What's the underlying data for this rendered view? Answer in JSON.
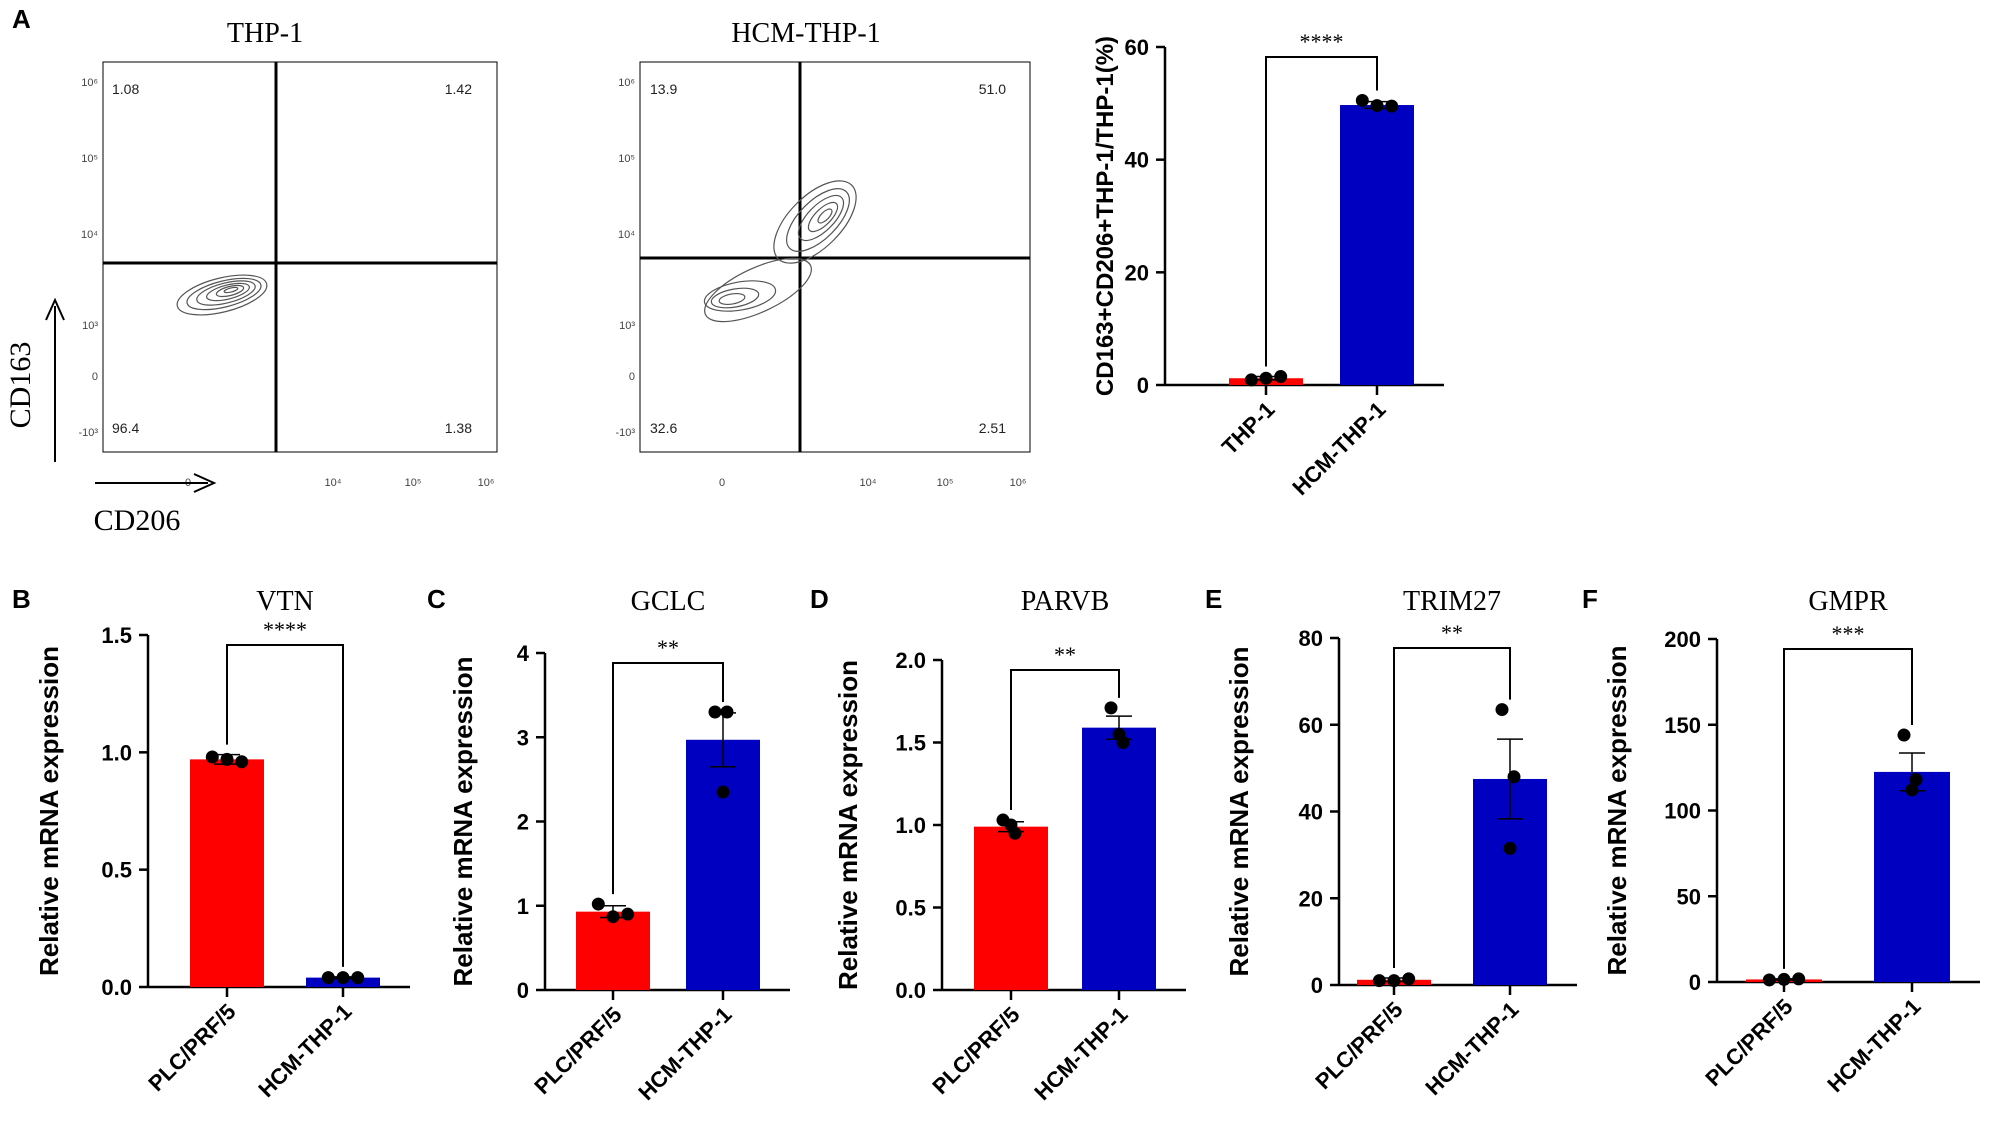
{
  "panel_letters": [
    "A",
    "B",
    "C",
    "D",
    "E",
    "F"
  ],
  "flow": [
    {
      "title": "THP-1",
      "quadrants": {
        "ul": "1.08",
        "ur": "1.42",
        "ll": "96.4",
        "lr": "1.38"
      },
      "y_ticks": [
        "10⁶",
        "10⁵",
        "10⁴",
        "10³",
        "0",
        "-10³"
      ],
      "x_ticks": [
        "0",
        "10⁴",
        "10⁵",
        "10⁶"
      ]
    },
    {
      "title": "HCM-THP-1",
      "quadrants": {
        "ul": "13.9",
        "ur": "51.0",
        "ll": "32.6",
        "lr": "2.51"
      },
      "y_ticks": [
        "10⁶",
        "10⁵",
        "10⁴",
        "10³",
        "0",
        "-10³"
      ],
      "x_ticks": [
        "0",
        "10⁴",
        "10⁵",
        "10⁶"
      ]
    }
  ],
  "flow_axis": {
    "y_label": "CD163",
    "x_label": "CD206"
  },
  "colors": {
    "red": "#ff0000",
    "blue": "#0000c0",
    "black": "#000000"
  },
  "chart_data": [
    {
      "panel": "A",
      "type": "bar",
      "title": "",
      "ylabel": "CD163+CD206+THP-1/THP-1(%)",
      "categories": [
        "THP-1",
        "HCM-THP-1"
      ],
      "values": [
        1.2,
        49.7
      ],
      "error": [
        0.3,
        0.6
      ],
      "points": [
        [
          0.9,
          1.2,
          1.5
        ],
        [
          50.5,
          49.6,
          49.5
        ]
      ],
      "colors": [
        "#ff0000",
        "#0000c0"
      ],
      "ylim": [
        0,
        60
      ],
      "yticks": [
        0,
        20,
        40,
        60
      ],
      "ytick_labels": [
        "0",
        "20",
        "40",
        "60"
      ],
      "significance": "****"
    },
    {
      "panel": "B",
      "type": "bar",
      "title": "VTN",
      "ylabel": "Relative mRNA  expression",
      "categories": [
        "PLC/PRF/5",
        "HCM-THP-1"
      ],
      "values": [
        0.97,
        0.04
      ],
      "error": [
        0.02,
        0.003
      ],
      "points": [
        [
          0.98,
          0.97,
          0.96
        ],
        [
          0.04,
          0.04,
          0.04
        ]
      ],
      "colors": [
        "#ff0000",
        "#0000c0"
      ],
      "ylim": [
        0,
        1.5
      ],
      "yticks": [
        0,
        0.5,
        1,
        1.5
      ],
      "ytick_labels": [
        "0.0",
        "0.5",
        "1.0",
        "1.5"
      ],
      "significance": "****"
    },
    {
      "panel": "C",
      "type": "bar",
      "title": "GCLC",
      "ylabel": "Relative mRNA  expression",
      "categories": [
        "PLC/PRF/5",
        "HCM-THP-1"
      ],
      "values": [
        0.93,
        2.97
      ],
      "error": [
        0.07,
        0.32
      ],
      "points": [
        [
          1.02,
          0.87,
          0.9
        ],
        [
          3.3,
          3.3,
          2.35
        ]
      ],
      "colors": [
        "#ff0000",
        "#0000c0"
      ],
      "ylim": [
        0,
        4
      ],
      "yticks": [
        0,
        1,
        2,
        3,
        4
      ],
      "ytick_labels": [
        "0",
        "1",
        "2",
        "3",
        "4"
      ],
      "significance": "**"
    },
    {
      "panel": "D",
      "type": "bar",
      "title": "PARVB",
      "ylabel": "Relative mRNA  expression",
      "categories": [
        "PLC/PRF/5",
        "HCM-THP-1"
      ],
      "values": [
        0.99,
        1.59
      ],
      "error": [
        0.03,
        0.07
      ],
      "points": [
        [
          1.03,
          0.95,
          1.0
        ],
        [
          1.71,
          1.5,
          1.55
        ]
      ],
      "colors": [
        "#ff0000",
        "#0000c0"
      ],
      "ylim": [
        0,
        2
      ],
      "yticks": [
        0,
        0.5,
        1,
        1.5,
        2
      ],
      "ytick_labels": [
        "0.0",
        "0.5",
        "1.0",
        "1.5",
        "2.0"
      ],
      "significance": "**"
    },
    {
      "panel": "E",
      "type": "bar",
      "title": "TRIM27",
      "ylabel": "Relative mRNA  expression",
      "categories": [
        "PLC/PRF/5",
        "HCM-THP-1"
      ],
      "values": [
        1.2,
        47.5
      ],
      "error": [
        0.4,
        9.2
      ],
      "points": [
        [
          1.0,
          1.0,
          1.4
        ],
        [
          63.5,
          48.0,
          31.5
        ]
      ],
      "colors": [
        "#ff0000",
        "#0000c0"
      ],
      "ylim": [
        0,
        80
      ],
      "yticks": [
        0,
        20,
        40,
        60,
        80
      ],
      "ytick_labels": [
        "0",
        "20",
        "40",
        "60",
        "80"
      ],
      "significance": "**"
    },
    {
      "panel": "F",
      "type": "bar",
      "title": "GMPR",
      "ylabel": "Relative mRNA  expression",
      "categories": [
        "PLC/PRF/5",
        "HCM-THP-1"
      ],
      "values": [
        1.5,
        122.5
      ],
      "error": [
        0.3,
        11
      ],
      "points": [
        [
          1.2,
          1.5,
          1.8
        ],
        [
          144,
          118,
          112
        ]
      ],
      "colors": [
        "#ff0000",
        "#0000c0"
      ],
      "ylim": [
        0,
        200
      ],
      "yticks": [
        0,
        50,
        100,
        150,
        200
      ],
      "ytick_labels": [
        "0",
        "50",
        "100",
        "150",
        "200"
      ],
      "significance": "***"
    }
  ]
}
